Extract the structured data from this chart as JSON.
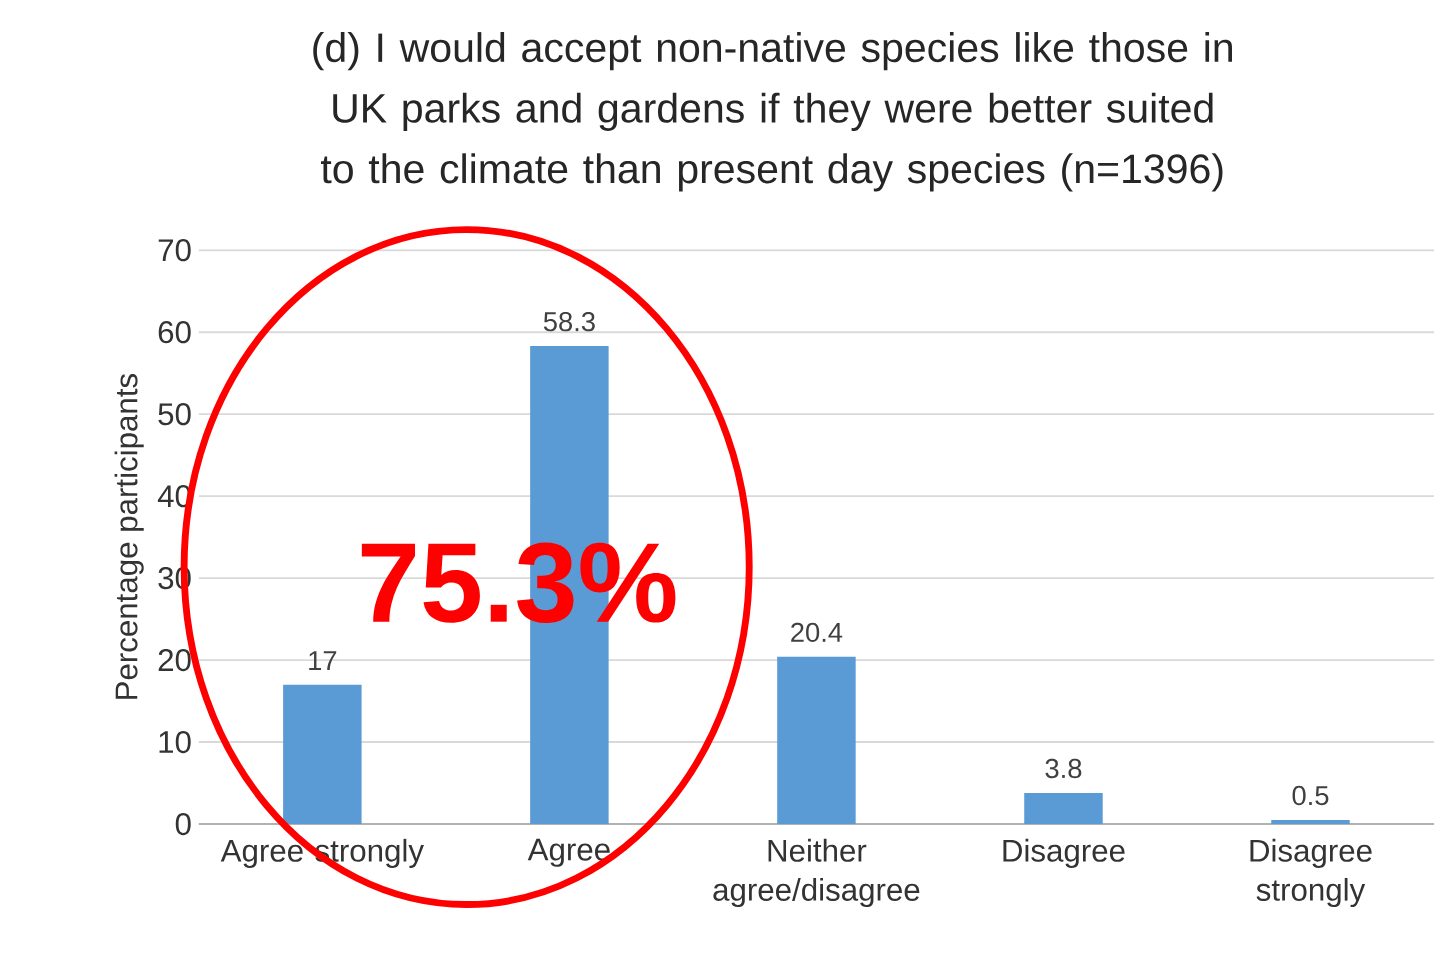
{
  "chart_data": {
    "type": "bar",
    "title": "(d) I would accept non-native species like those in UK parks and gardens if they were better suited to the climate than present day species (n=1396)",
    "ylabel": "Percentage participants",
    "categories": [
      "Agree strongly",
      "Agree",
      "Neither agree/disagree",
      "Disagree",
      "Disagree strongly"
    ],
    "values": [
      17,
      58.3,
      20.4,
      3.8,
      0.5
    ],
    "color": "#5b9bd5",
    "ylim": [
      0,
      70
    ],
    "yticks": [
      0,
      10,
      20,
      30,
      40,
      50,
      60,
      70
    ],
    "grid": "y",
    "data_labels": true,
    "annotations": [
      "75.3%"
    ]
  }
}
